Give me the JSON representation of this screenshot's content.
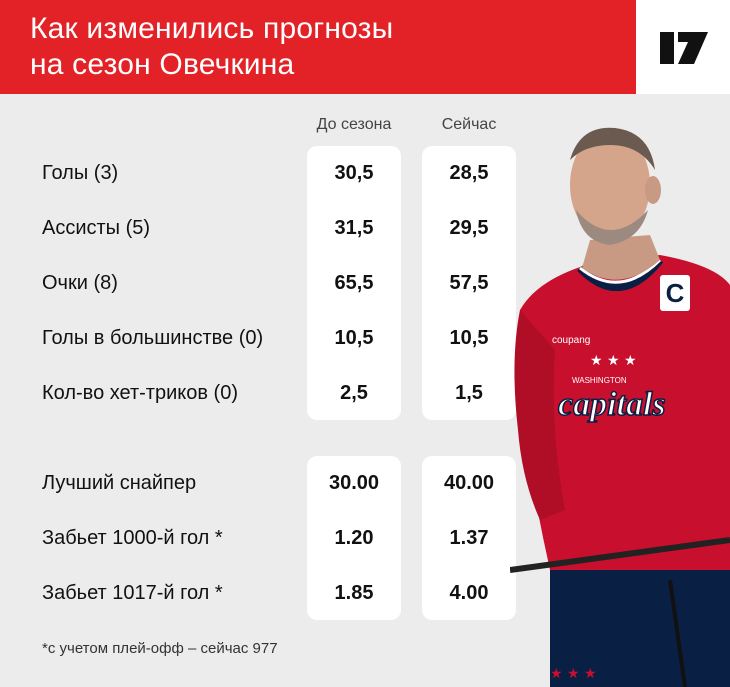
{
  "header": {
    "title_line1": "Как изменились прогнозы",
    "title_line2": "на сезон Овечкина",
    "brand_color": "#e32227"
  },
  "columns": {
    "before": "До сезона",
    "now": "Сейчас"
  },
  "stats": [
    {
      "label": "Голы (3)",
      "before": "30,5",
      "now": "28,5"
    },
    {
      "label": "Ассисты (5)",
      "before": "31,5",
      "now": "29,5"
    },
    {
      "label": "Очки (8)",
      "before": "65,5",
      "now": "57,5"
    },
    {
      "label": "Голы в большинстве (0)",
      "before": "10,5",
      "now": "10,5"
    },
    {
      "label": "Кол-во хет-триков (0)",
      "before": "2,5",
      "now": "1,5"
    }
  ],
  "odds": [
    {
      "label": "Лучший снайпер",
      "before": "30.00",
      "now": "40.00"
    },
    {
      "label": "Забьет 1000-й гол *",
      "before": "1.20",
      "now": "1.37"
    },
    {
      "label": "Забьет 1017-й гол *",
      "before": "1.85",
      "now": "4.00"
    }
  ],
  "footnote": "*с учетом плей-офф – сейчас 977",
  "photo": {
    "jersey_text": "capitals",
    "jersey_subtext": "WASHINGTON",
    "captain_letter": "C",
    "sponsor": "coupang",
    "jersey_color": "#c8102e"
  }
}
